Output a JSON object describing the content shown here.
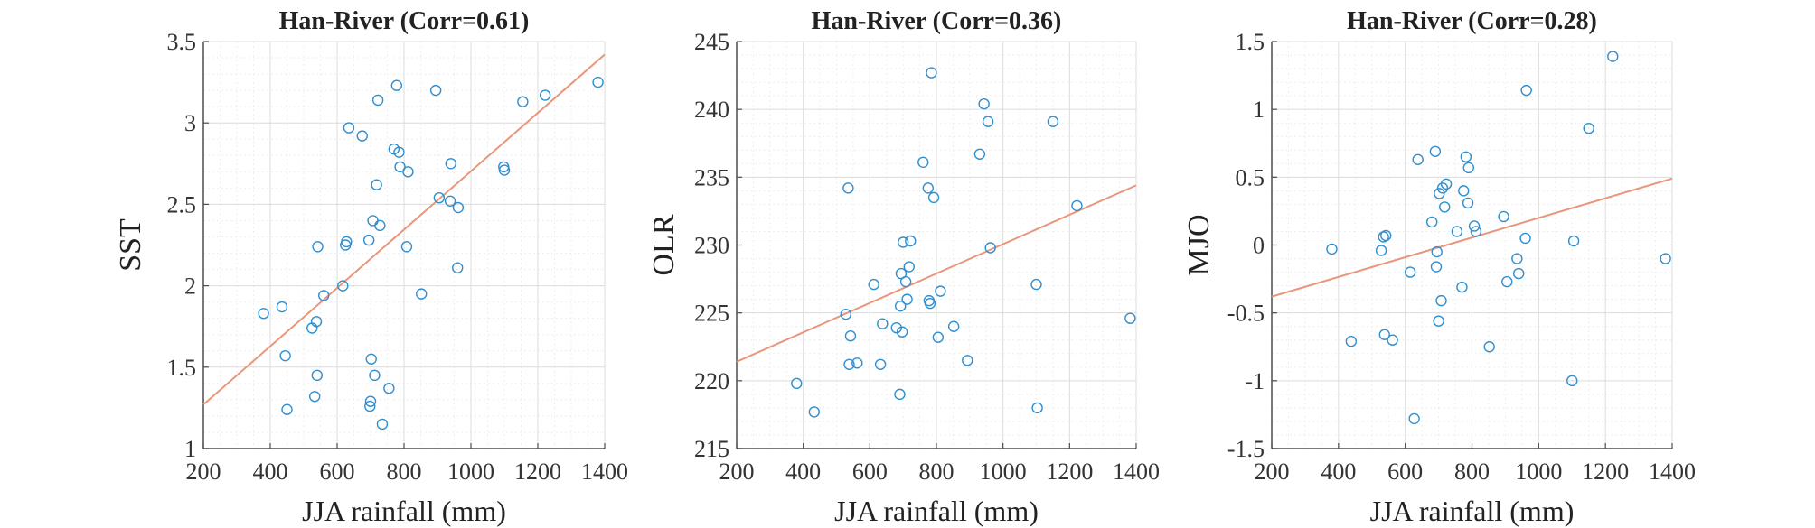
{
  "colors": {
    "point": "#2f8fd0",
    "fit": "#e9967a",
    "grid_major": "#dcdcdc",
    "grid_minor": "#eeeeee",
    "axis": "#4d4d4d"
  },
  "chart_data": [
    {
      "type": "scatter",
      "title": "Han-River (Corr=0.61)",
      "xlabel": "JJA rainfall (mm)",
      "ylabel": "SST",
      "xlim": [
        200,
        1400
      ],
      "ylim": [
        1,
        3.5
      ],
      "xticks": [
        200,
        400,
        600,
        800,
        1000,
        1200,
        1400
      ],
      "yticks": [
        1,
        1.5,
        2,
        2.5,
        3,
        3.5
      ],
      "xticklabels": [
        "200",
        "400",
        "600",
        "800",
        "1000",
        "1200",
        "1400"
      ],
      "yticklabels": [
        "1",
        "1.5",
        "2",
        "2.5",
        "3",
        "3.5"
      ],
      "fit": [
        [
          200,
          1.27
        ],
        [
          1400,
          3.42
        ]
      ],
      "points": [
        [
          380,
          1.83
        ],
        [
          435,
          1.87
        ],
        [
          445,
          1.57
        ],
        [
          450,
          1.24
        ],
        [
          525,
          1.74
        ],
        [
          533,
          1.32
        ],
        [
          538,
          1.78
        ],
        [
          540,
          1.45
        ],
        [
          542,
          2.24
        ],
        [
          560,
          1.94
        ],
        [
          617,
          2.0
        ],
        [
          625,
          2.25
        ],
        [
          628,
          2.27
        ],
        [
          635,
          2.97
        ],
        [
          675,
          2.92
        ],
        [
          695,
          2.28
        ],
        [
          698,
          1.26
        ],
        [
          700,
          1.29
        ],
        [
          702,
          1.55
        ],
        [
          707,
          2.4
        ],
        [
          712,
          1.45
        ],
        [
          718,
          2.62
        ],
        [
          722,
          3.14
        ],
        [
          728,
          2.37
        ],
        [
          735,
          1.15
        ],
        [
          755,
          1.37
        ],
        [
          770,
          2.84
        ],
        [
          778,
          3.23
        ],
        [
          785,
          2.82
        ],
        [
          788,
          2.73
        ],
        [
          808,
          2.24
        ],
        [
          812,
          2.7
        ],
        [
          852,
          1.95
        ],
        [
          895,
          3.2
        ],
        [
          905,
          2.54
        ],
        [
          938,
          2.52
        ],
        [
          940,
          2.75
        ],
        [
          960,
          2.11
        ],
        [
          962,
          2.48
        ],
        [
          1098,
          2.73
        ],
        [
          1100,
          2.71
        ],
        [
          1155,
          3.13
        ],
        [
          1222,
          3.17
        ],
        [
          1380,
          3.25
        ]
      ]
    },
    {
      "type": "scatter",
      "title": "Han-River (Corr=0.36)",
      "xlabel": "JJA rainfall (mm)",
      "ylabel": "OLR",
      "xlim": [
        200,
        1400
      ],
      "ylim": [
        215,
        245
      ],
      "xticks": [
        200,
        400,
        600,
        800,
        1000,
        1200,
        1400
      ],
      "yticks": [
        215,
        220,
        225,
        230,
        235,
        240,
        245
      ],
      "xticklabels": [
        "200",
        "400",
        "600",
        "800",
        "1000",
        "1200",
        "1400"
      ],
      "yticklabels": [
        "215",
        "220",
        "225",
        "230",
        "235",
        "240",
        "245"
      ],
      "fit": [
        [
          200,
          221.4
        ],
        [
          1400,
          234.4
        ]
      ],
      "points": [
        [
          380,
          219.8
        ],
        [
          433,
          217.7
        ],
        [
          528,
          224.9
        ],
        [
          535,
          234.2
        ],
        [
          538,
          221.2
        ],
        [
          542,
          223.3
        ],
        [
          562,
          221.3
        ],
        [
          612,
          227.1
        ],
        [
          632,
          221.2
        ],
        [
          638,
          224.2
        ],
        [
          680,
          223.9
        ],
        [
          690,
          219.0
        ],
        [
          692,
          225.5
        ],
        [
          694,
          227.9
        ],
        [
          697,
          223.6
        ],
        [
          700,
          230.2
        ],
        [
          708,
          227.3
        ],
        [
          712,
          226.0
        ],
        [
          718,
          228.4
        ],
        [
          722,
          230.3
        ],
        [
          760,
          236.1
        ],
        [
          775,
          234.2
        ],
        [
          778,
          225.9
        ],
        [
          781,
          225.7
        ],
        [
          785,
          242.7
        ],
        [
          792,
          233.5
        ],
        [
          805,
          223.2
        ],
        [
          812,
          226.6
        ],
        [
          852,
          224.0
        ],
        [
          893,
          221.5
        ],
        [
          930,
          236.7
        ],
        [
          943,
          240.4
        ],
        [
          955,
          239.1
        ],
        [
          962,
          229.8
        ],
        [
          1100,
          227.1
        ],
        [
          1103,
          218.0
        ],
        [
          1150,
          239.1
        ],
        [
          1222,
          232.9
        ],
        [
          1382,
          224.6
        ]
      ]
    },
    {
      "type": "scatter",
      "title": "Han-River (Corr=0.28)",
      "xlabel": "JJA rainfall (mm)",
      "ylabel": "MJO",
      "xlim": [
        200,
        1400
      ],
      "ylim": [
        -1.5,
        1.5
      ],
      "xticks": [
        200,
        400,
        600,
        800,
        1000,
        1200,
        1400
      ],
      "yticks": [
        -1.5,
        -1,
        -0.5,
        0,
        0.5,
        1,
        1.5
      ],
      "xticklabels": [
        "200",
        "400",
        "600",
        "800",
        "1000",
        "1200",
        "1400"
      ],
      "yticklabels": [
        "-1.5",
        "-1",
        "-0.5",
        "0",
        "0.5",
        "1",
        "1.5"
      ],
      "fit": [
        [
          200,
          -0.38
        ],
        [
          1400,
          0.49
        ]
      ],
      "points": [
        [
          380,
          -0.03
        ],
        [
          438,
          -0.71
        ],
        [
          528,
          -0.04
        ],
        [
          535,
          0.06
        ],
        [
          538,
          -0.66
        ],
        [
          542,
          0.07
        ],
        [
          562,
          -0.7
        ],
        [
          615,
          -0.2
        ],
        [
          627,
          -1.28
        ],
        [
          638,
          0.63
        ],
        [
          680,
          0.17
        ],
        [
          690,
          0.69
        ],
        [
          693,
          -0.16
        ],
        [
          695,
          -0.05
        ],
        [
          700,
          -0.56
        ],
        [
          702,
          0.38
        ],
        [
          708,
          -0.41
        ],
        [
          712,
          0.42
        ],
        [
          718,
          0.28
        ],
        [
          723,
          0.45
        ],
        [
          755,
          0.1
        ],
        [
          770,
          -0.31
        ],
        [
          775,
          0.4
        ],
        [
          782,
          0.65
        ],
        [
          788,
          0.31
        ],
        [
          790,
          0.57
        ],
        [
          807,
          0.14
        ],
        [
          812,
          0.1
        ],
        [
          852,
          -0.75
        ],
        [
          895,
          0.21
        ],
        [
          905,
          -0.27
        ],
        [
          935,
          -0.1
        ],
        [
          940,
          -0.21
        ],
        [
          960,
          0.05
        ],
        [
          963,
          1.14
        ],
        [
          1100,
          -1.0
        ],
        [
          1105,
          0.03
        ],
        [
          1150,
          0.86
        ],
        [
          1222,
          1.39
        ],
        [
          1380,
          -0.1
        ]
      ]
    }
  ]
}
